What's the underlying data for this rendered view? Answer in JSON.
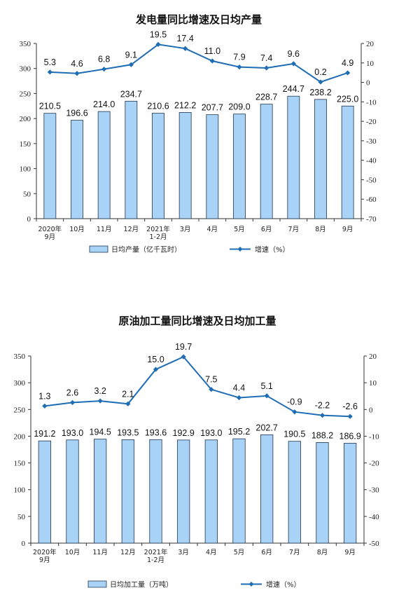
{
  "colors": {
    "bar_fill": "#a9d3f6",
    "bar_stroke": "#1f3552",
    "line": "#1f6db4",
    "axis": "#333333"
  },
  "chart_data": [
    {
      "type": "bar",
      "title": "发电量同比增速及日均产量",
      "categories": [
        "2020年|9月",
        "10月",
        "11月",
        "12月",
        "2021年|1-2月",
        "3月",
        "4月",
        "5月",
        "6月",
        "7月",
        "8月",
        "9月"
      ],
      "series": [
        {
          "name": "日均产量（亿千瓦时）",
          "type": "bar",
          "axis": "left",
          "values": [
            210.5,
            196.6,
            214.0,
            234.7,
            210.6,
            212.2,
            207.7,
            209.0,
            228.7,
            244.7,
            238.2,
            225.0
          ]
        },
        {
          "name": "增速（%）",
          "type": "line",
          "axis": "right",
          "values": [
            5.3,
            4.6,
            6.8,
            9.1,
            19.5,
            17.4,
            11.0,
            7.9,
            7.4,
            9.6,
            0.2,
            4.9
          ]
        }
      ],
      "left_axis": {
        "ylim": [
          0,
          350
        ],
        "ticks": [
          "0",
          "50",
          "100",
          "150",
          "200",
          "250",
          "300",
          "350"
        ]
      },
      "right_axis": {
        "ylim": [
          -70,
          20
        ],
        "ticks": [
          "-70",
          "-60",
          "-50",
          "-40",
          "-30",
          "-20",
          "-10",
          "0",
          "10",
          "20"
        ]
      },
      "legend": "bottom",
      "grid": false
    },
    {
      "type": "bar",
      "title": "原油加工量同比增速及日均加工量",
      "categories": [
        "2020年|9月",
        "10月",
        "11月",
        "12月",
        "2021年|1-2月",
        "3月",
        "4月",
        "5月",
        "6月",
        "7月",
        "8月",
        "9月"
      ],
      "series": [
        {
          "name": "日均加工量（万吨）",
          "type": "bar",
          "axis": "left",
          "values": [
            191.2,
            193.0,
            194.5,
            193.5,
            193.6,
            192.9,
            193.0,
            195.2,
            202.7,
            190.5,
            188.2,
            186.9
          ]
        },
        {
          "name": "增速（%）",
          "type": "line",
          "axis": "right",
          "values": [
            1.3,
            2.6,
            3.2,
            2.1,
            15.0,
            19.7,
            7.5,
            4.4,
            5.1,
            -0.9,
            -2.2,
            -2.6
          ]
        }
      ],
      "left_axis": {
        "ylim": [
          0,
          350
        ],
        "ticks": [
          "0",
          "50",
          "100",
          "150",
          "200",
          "250",
          "300",
          "350"
        ]
      },
      "right_axis": {
        "ylim": [
          -50,
          20
        ],
        "ticks": [
          "-50",
          "-40",
          "-30",
          "-20",
          "-10",
          "0",
          "10",
          "20"
        ]
      },
      "legend": "bottom",
      "grid": false
    }
  ]
}
